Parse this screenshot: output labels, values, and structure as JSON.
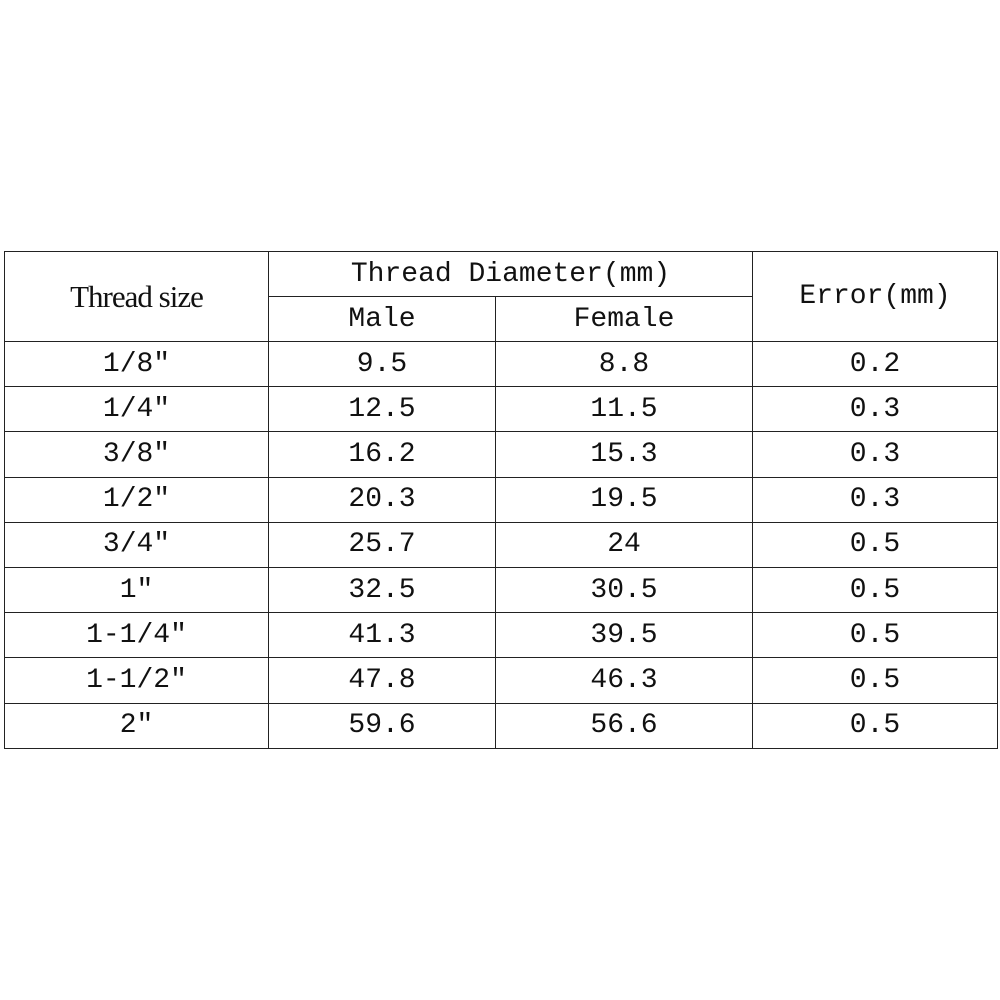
{
  "table": {
    "header": {
      "thread_size": "Thread size",
      "diameter": "Thread Diameter(mm)",
      "male": "Male",
      "female": "Female",
      "error": "Error(mm)"
    },
    "rows": [
      [
        "1/8″",
        "9.5",
        "8.8",
        "0.2"
      ],
      [
        "1/4″",
        "12.5",
        "11.5",
        "0.3"
      ],
      [
        "3/8″",
        "16.2",
        "15.3",
        "0.3"
      ],
      [
        "1/2″",
        "20.3",
        "19.5",
        "0.3"
      ],
      [
        "3/4″",
        "25.7",
        "24",
        "0.5"
      ],
      [
        "1″",
        "32.5",
        "30.5",
        "0.5"
      ],
      [
        "1-1/4″",
        "41.3",
        "39.5",
        "0.5"
      ],
      [
        "1-1/2″",
        "47.8",
        "46.3",
        "0.5"
      ],
      [
        "2″",
        "59.6",
        "56.6",
        "0.5"
      ]
    ]
  }
}
